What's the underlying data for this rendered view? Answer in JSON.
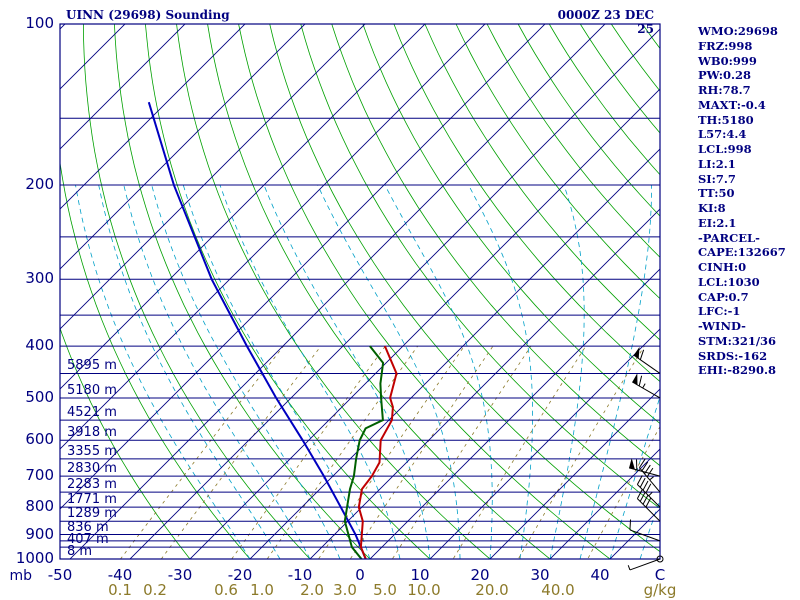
{
  "header": {
    "station": "UINN (29698) Sounding",
    "time": "0000Z 23 DEC 25"
  },
  "indices": [
    "WMO:29698",
    "FRZ:998",
    "WB0:999",
    "PW:0.28",
    "RH:78.7",
    "MAXT:-0.4",
    "TH:5180",
    "L57:4.4",
    "LCL:998",
    "LI:2.1",
    "SI:7.7",
    "TT:50",
    "KI:8",
    "EI:2.1",
    "-PARCEL-",
    "CAPE:132667",
    "CINH:0",
    "LCL:1030",
    "CAP:0.7",
    "LFC:-1",
    "-WIND-",
    "STM:321/36",
    "SRDS:-162",
    "EHI:-8290.8"
  ],
  "colors": {
    "frame": "#000080",
    "isobar": "#000080",
    "isotherm": "#000080",
    "dry_adiabat": "#00a000",
    "moist_adiabat": "#00a0c8",
    "mixing_ratio": "#8c7a2a",
    "temperature": "#c00000",
    "dewpoint": "#006000",
    "parcel": "#0000c0"
  },
  "chart_data": {
    "type": "skew-t",
    "title": "UINN (29698) Sounding",
    "time": "0000Z 23 DEC 25",
    "pressure_unit": "mb",
    "temperature_unit": "C",
    "mixing_ratio_unit": "g/kg",
    "pressure_range": [
      1000,
      100
    ],
    "temperature_range": [
      -50,
      50
    ],
    "pressure_ticks": [
      100,
      200,
      300,
      400,
      500,
      600,
      700,
      800,
      900,
      1000
    ],
    "isobars": [
      100,
      150,
      200,
      250,
      300,
      350,
      400,
      450,
      500,
      550,
      600,
      650,
      700,
      750,
      800,
      850,
      900,
      925,
      950,
      1000
    ],
    "temperature_ticks": [
      "-50",
      "-40",
      "-30",
      "-20",
      "-10",
      "0",
      "10",
      "20",
      "30",
      "40",
      "C"
    ],
    "mixing_ratio_ticks": [
      "0.1",
      "0.2",
      "0.6",
      "1.0",
      "2.0",
      "3.0",
      "5.0",
      "10.0",
      "20.0",
      "40.0",
      "g/kg"
    ],
    "mixing_ratio_values": [
      0.1,
      0.2,
      0.6,
      1.0,
      2.0,
      3.0,
      5.0,
      10.0,
      20.0,
      40.0
    ],
    "height_labels": [
      {
        "p": 450,
        "label": "5895 m"
      },
      {
        "p": 500,
        "label": "5180 m"
      },
      {
        "p": 550,
        "label": "4521 m"
      },
      {
        "p": 600,
        "label": "3918 m"
      },
      {
        "p": 650,
        "label": "3355 m"
      },
      {
        "p": 700,
        "label": "2830 m"
      },
      {
        "p": 750,
        "label": "2283 m"
      },
      {
        "p": 800,
        "label": "1771 m"
      },
      {
        "p": 850,
        "label": "1289 m"
      },
      {
        "p": 900,
        "label": "836 m"
      },
      {
        "p": 950,
        "label": "407 m"
      },
      {
        "p": 1000,
        "label": "8 m"
      }
    ],
    "temperature_profile": [
      {
        "p": 1028,
        "t": 0.8
      },
      {
        "p": 950,
        "t": -3.5
      },
      {
        "p": 850,
        "t": -7.5
      },
      {
        "p": 800,
        "t": -10.5
      },
      {
        "p": 740,
        "t": -13.0
      },
      {
        "p": 700,
        "t": -13.5
      },
      {
        "p": 660,
        "t": -14.5
      },
      {
        "p": 600,
        "t": -18.0
      },
      {
        "p": 550,
        "t": -19.5
      },
      {
        "p": 520,
        "t": -21.5
      },
      {
        "p": 500,
        "t": -23.5
      },
      {
        "p": 450,
        "t": -26.5
      },
      {
        "p": 400,
        "t": -33.0
      }
    ],
    "dewpoint_profile": [
      {
        "p": 1028,
        "t": 0.5
      },
      {
        "p": 950,
        "t": -5.0
      },
      {
        "p": 850,
        "t": -10.5
      },
      {
        "p": 740,
        "t": -15.0
      },
      {
        "p": 700,
        "t": -16.5
      },
      {
        "p": 650,
        "t": -19.0
      },
      {
        "p": 600,
        "t": -21.5
      },
      {
        "p": 570,
        "t": -22.5
      },
      {
        "p": 550,
        "t": -21.0
      },
      {
        "p": 500,
        "t": -25.0
      },
      {
        "p": 470,
        "t": -27.5
      },
      {
        "p": 430,
        "t": -30.5
      },
      {
        "p": 400,
        "t": -35.5
      }
    ],
    "parcel_profile": [
      {
        "p": 1028,
        "t": 0.8
      },
      {
        "p": 900,
        "t": -6.5
      },
      {
        "p": 800,
        "t": -13.5
      },
      {
        "p": 700,
        "t": -21.5
      },
      {
        "p": 600,
        "t": -31.0
      },
      {
        "p": 500,
        "t": -42.5
      },
      {
        "p": 400,
        "t": -56.0
      },
      {
        "p": 300,
        "t": -73.0
      },
      {
        "p": 200,
        "t": -95.0
      },
      {
        "p": 140,
        "t": -113.0
      }
    ],
    "wind_barbs": [
      {
        "p": 1000,
        "dir": 250,
        "speed": 5
      },
      {
        "p": 925,
        "dir": 290,
        "speed": 10
      },
      {
        "p": 850,
        "dir": 315,
        "speed": 40
      },
      {
        "p": 800,
        "dir": 315,
        "speed": 45
      },
      {
        "p": 750,
        "dir": 320,
        "speed": 45
      },
      {
        "p": 700,
        "dir": 285,
        "speed": 60
      },
      {
        "p": 500,
        "dir": 300,
        "speed": 65
      },
      {
        "p": 450,
        "dir": 305,
        "speed": 60
      }
    ]
  }
}
